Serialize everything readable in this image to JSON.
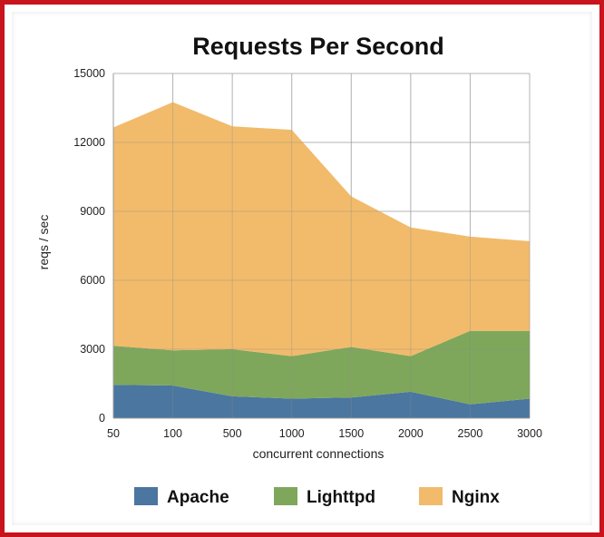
{
  "chart_data": {
    "type": "area",
    "stacked": true,
    "title": "Requests Per Second",
    "xlabel": "concurrent connections",
    "ylabel": "reqs / sec",
    "categories": [
      "50",
      "100",
      "500",
      "1000",
      "1500",
      "2000",
      "2500",
      "3000"
    ],
    "yticks": [
      "0",
      "3000",
      "6000",
      "9000",
      "12000",
      "15000"
    ],
    "ylim": [
      0,
      15000
    ],
    "grid": true,
    "legend_position": "bottom",
    "series": [
      {
        "name": "Apache",
        "color": "#4a76a0",
        "values": [
          1450,
          1420,
          950,
          850,
          900,
          1150,
          600,
          850
        ]
      },
      {
        "name": "Lighttpd",
        "color": "#7ea75b",
        "values": [
          1700,
          1530,
          2050,
          1850,
          2200,
          1550,
          3200,
          2950
        ]
      },
      {
        "name": "Nginx",
        "color": "#f1bb6b",
        "values": [
          9500,
          10800,
          9700,
          9850,
          6550,
          5600,
          4100,
          3900
        ]
      }
    ]
  }
}
